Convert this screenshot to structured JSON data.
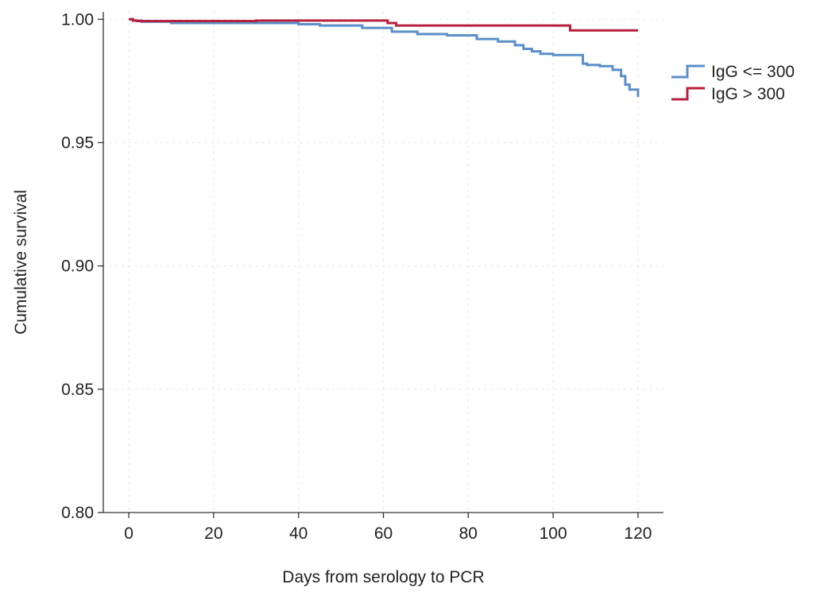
{
  "chart_data": {
    "type": "line",
    "step": true,
    "xlabel": "Days from serology to PCR",
    "ylabel": "Cumulative survival",
    "xlim": [
      -6,
      126
    ],
    "ylim": [
      0.8,
      1.003
    ],
    "xticks": [
      0,
      20,
      40,
      60,
      80,
      100,
      120
    ],
    "yticks": [
      0.8,
      0.85,
      0.9,
      0.95,
      1.0
    ],
    "xtick_labels": [
      "0",
      "20",
      "40",
      "60",
      "80",
      "100",
      "120"
    ],
    "ytick_labels": [
      "0.80",
      "0.85",
      "0.90",
      "0.95",
      "1.00"
    ],
    "grid": true,
    "legend_position": "top-right outside plot",
    "series": [
      {
        "name": "IgG <= 300",
        "color": "#5b8fc7",
        "x": [
          0,
          1,
          3,
          10,
          40,
          45,
          55,
          62,
          68,
          75,
          82,
          87,
          91,
          93,
          95,
          97,
          100,
          107,
          108,
          111,
          114,
          116,
          117,
          118,
          120
        ],
        "y": [
          1.0,
          0.9995,
          0.999,
          0.9985,
          0.998,
          0.9975,
          0.9965,
          0.995,
          0.994,
          0.9935,
          0.992,
          0.991,
          0.9895,
          0.988,
          0.987,
          0.986,
          0.9855,
          0.982,
          0.9815,
          0.981,
          0.9795,
          0.977,
          0.9735,
          0.9715,
          0.9685
        ]
      },
      {
        "name": "IgG > 300",
        "color": "#b8203f",
        "x": [
          0,
          1,
          2,
          15,
          30,
          55,
          61,
          63,
          104,
          120
        ],
        "y": [
          1.0,
          0.9995,
          0.9993,
          0.9993,
          0.9995,
          0.9995,
          0.9985,
          0.9975,
          0.9955,
          0.9955
        ]
      }
    ]
  }
}
